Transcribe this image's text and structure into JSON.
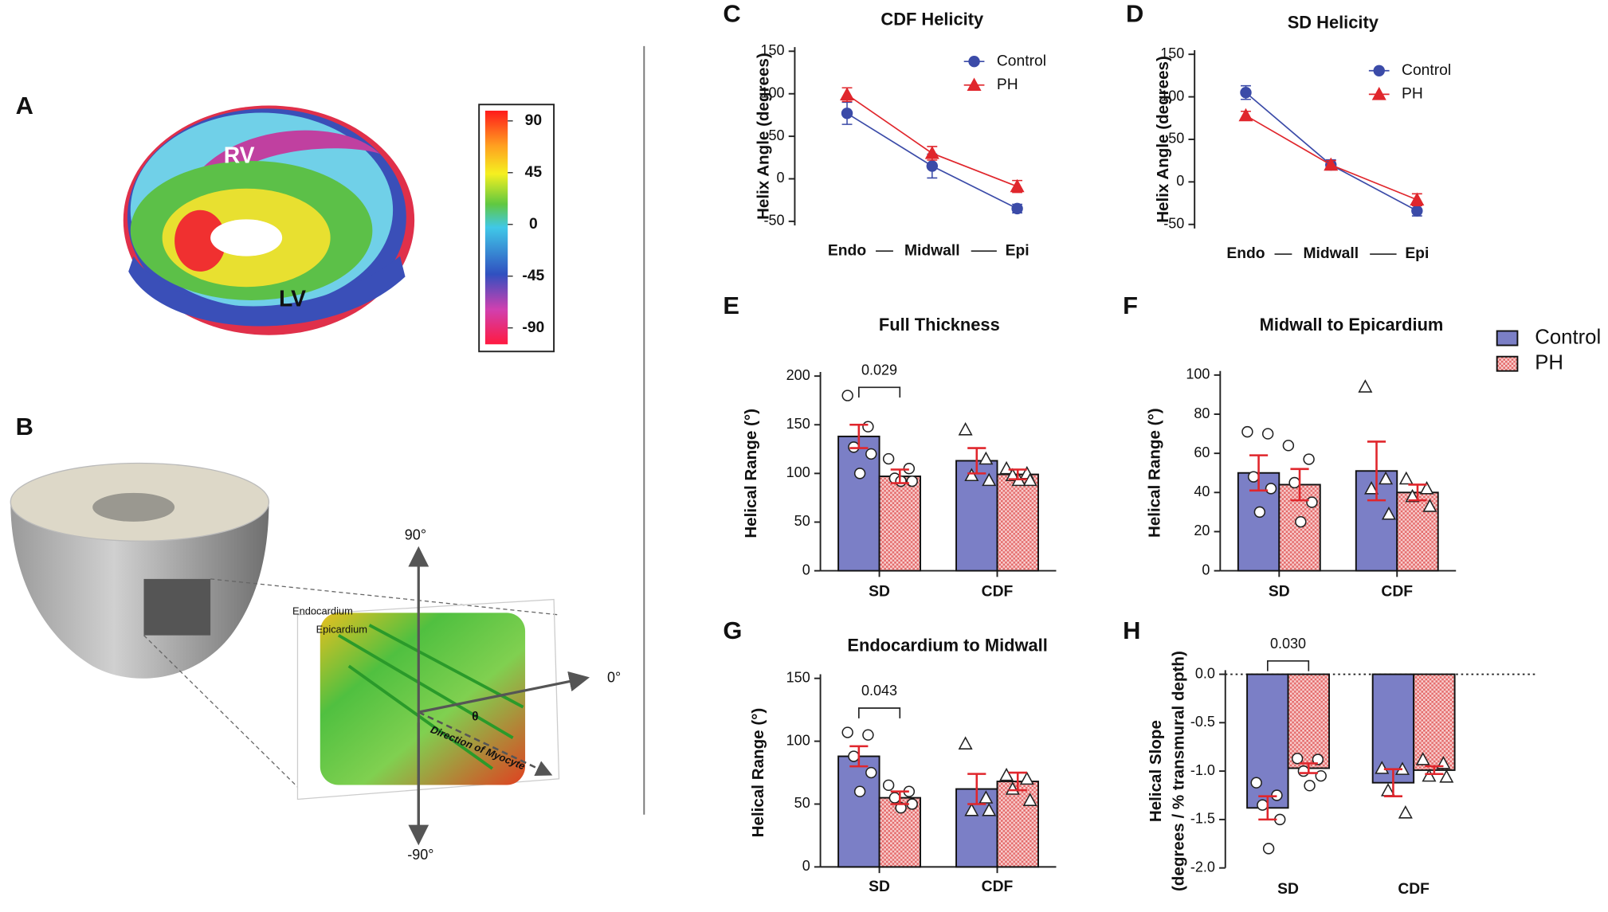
{
  "panel_a": {
    "label": "A",
    "region_labels": [
      "RV",
      "LV"
    ],
    "colorbar_ticks": [
      90,
      45,
      0,
      -45,
      -90
    ]
  },
  "panel_b": {
    "label": "B",
    "axis_labels": [
      "90°",
      "0°",
      "-90°"
    ],
    "layer_labels": [
      "Endocardium",
      "Epicardium"
    ],
    "angle_label": "θ",
    "direction_label": "Direction of Myocyte"
  },
  "chart_data": [
    {
      "type": "line",
      "panel": "C",
      "title": "CDF Helicity",
      "categories": [
        "Endo",
        "Midwall",
        "Epi"
      ],
      "y_label": "Helix Angle (degrees)",
      "ylim": [
        -50,
        150
      ],
      "yticks": [
        -50,
        0,
        50,
        100,
        150
      ],
      "legend": "upper right",
      "series": [
        {
          "name": "Control",
          "color": "#3b4ba8",
          "marker": "circle",
          "values": [
            77,
            15,
            -35
          ],
          "errors": [
            13,
            14,
            5
          ]
        },
        {
          "name": "PH",
          "color": "#e0262c",
          "marker": "triangle",
          "values": [
            99,
            30,
            -9
          ],
          "errors": [
            8,
            8,
            7
          ]
        }
      ]
    },
    {
      "type": "line",
      "panel": "D",
      "title": "SD Helicity",
      "categories": [
        "Endo",
        "Midwall",
        "Epi"
      ],
      "y_label": "Helix Angle (degrees)",
      "ylim": [
        -50,
        150
      ],
      "yticks": [
        -50,
        0,
        50,
        100,
        150
      ],
      "legend": "upper right",
      "series": [
        {
          "name": "Control",
          "color": "#3b4ba8",
          "marker": "circle",
          "values": [
            105,
            20,
            -34
          ],
          "errors": [
            8,
            6,
            6
          ]
        },
        {
          "name": "PH",
          "color": "#e0262c",
          "marker": "triangle",
          "values": [
            78,
            20,
            -21
          ],
          "errors": [
            5,
            5,
            7
          ]
        }
      ]
    },
    {
      "type": "bar",
      "panel": "E",
      "title": "Full Thickness",
      "categories": [
        "SD",
        "CDF"
      ],
      "y_label": "Helical Range (°)",
      "ylim": [
        0,
        200
      ],
      "yticks": [
        0,
        50,
        100,
        150,
        200
      ],
      "annotation": "0.029",
      "point_markers": [
        "circle",
        "triangle"
      ],
      "error_color": "#e0262c",
      "series": [
        {
          "name": "Control",
          "color": "#7b7fc6",
          "pattern": "solid",
          "values": [
            138,
            113
          ],
          "errors": [
            12,
            13
          ],
          "points": [
            [
              180,
              148,
              127,
              120,
              100
            ],
            [
              145,
              115,
              98,
              93
            ]
          ]
        },
        {
          "name": "PH",
          "color": "#f3a7a7",
          "pattern": "checker",
          "values": [
            97,
            99
          ],
          "errors": [
            7,
            5
          ],
          "points": [
            [
              115,
              105,
              95,
              92,
              92
            ],
            [
              105,
              100,
              98,
              93,
              93
            ]
          ]
        }
      ]
    },
    {
      "type": "bar",
      "panel": "F",
      "title": "Midwall to Epicardium",
      "categories": [
        "SD",
        "CDF"
      ],
      "y_label": "Helical Range (°)",
      "ylim": [
        0,
        100
      ],
      "yticks": [
        0,
        20,
        40,
        60,
        80,
        100
      ],
      "legend": "right",
      "point_markers": [
        "circle",
        "triangle"
      ],
      "error_color": "#e0262c",
      "series": [
        {
          "name": "Control",
          "color": "#7b7fc6",
          "pattern": "solid",
          "values": [
            50,
            51
          ],
          "errors": [
            9,
            15
          ],
          "points": [
            [
              71,
              70,
              48,
              42,
              30
            ],
            [
              94,
              47,
              42,
              29
            ]
          ]
        },
        {
          "name": "PH",
          "color": "#f3a7a7",
          "pattern": "checker",
          "values": [
            44,
            40
          ],
          "errors": [
            8,
            4
          ],
          "points": [
            [
              64,
              57,
              45,
              35,
              25
            ],
            [
              47,
              42,
              38,
              33
            ]
          ]
        }
      ]
    },
    {
      "type": "bar",
      "panel": "G",
      "title": "Endocardium to Midwall",
      "categories": [
        "SD",
        "CDF"
      ],
      "y_label": "Helical Range (°)",
      "ylim": [
        0,
        150
      ],
      "yticks": [
        0,
        50,
        100,
        150
      ],
      "annotation": "0.043",
      "point_markers": [
        "circle",
        "triangle"
      ],
      "error_color": "#e0262c",
      "series": [
        {
          "name": "Control",
          "color": "#7b7fc6",
          "pattern": "solid",
          "values": [
            88,
            62
          ],
          "errors": [
            8,
            12
          ],
          "points": [
            [
              107,
              105,
              88,
              75,
              60
            ],
            [
              98,
              55,
              45,
              45
            ]
          ]
        },
        {
          "name": "PH",
          "color": "#f3a7a7",
          "pattern": "checker",
          "values": [
            55,
            68
          ],
          "errors": [
            5,
            7
          ],
          "points": [
            [
              65,
              60,
              55,
              50,
              47
            ],
            [
              73,
              70,
              62,
              53
            ]
          ]
        }
      ]
    },
    {
      "type": "bar",
      "panel": "H",
      "categories": [
        "SD",
        "CDF"
      ],
      "y_label": [
        "Helical Slope",
        "(degrees / % transmural depth)"
      ],
      "ylim": [
        -2,
        0
      ],
      "yticks": [
        {
          "value": -2,
          "label": "-2.0"
        },
        -1.5,
        {
          "value": -1,
          "label": "-1.0"
        },
        -0.5,
        {
          "value": 0,
          "label": "0.0"
        }
      ],
      "zero_line": true,
      "annotation": "0.030",
      "point_markers": [
        "circle",
        "triangle"
      ],
      "error_color": "#e0262c",
      "series": [
        {
          "name": "Control",
          "color": "#7b7fc6",
          "pattern": "solid",
          "values": [
            -1.38,
            -1.12
          ],
          "errors": [
            0.12,
            0.14
          ],
          "points": [
            [
              -1.12,
              -1.25,
              -1.35,
              -1.5,
              -1.8
            ],
            [
              -0.97,
              -0.98,
              -1.2,
              -1.43
            ]
          ]
        },
        {
          "name": "PH",
          "color": "#f3a7a7",
          "pattern": "checker",
          "values": [
            -0.97,
            -0.99
          ],
          "errors": [
            0.05,
            0.04
          ],
          "points": [
            [
              -0.87,
              -0.88,
              -1.0,
              -1.05,
              -1.15
            ],
            [
              -0.88,
              -0.92,
              -1.05,
              -1.06
            ]
          ]
        }
      ]
    }
  ]
}
